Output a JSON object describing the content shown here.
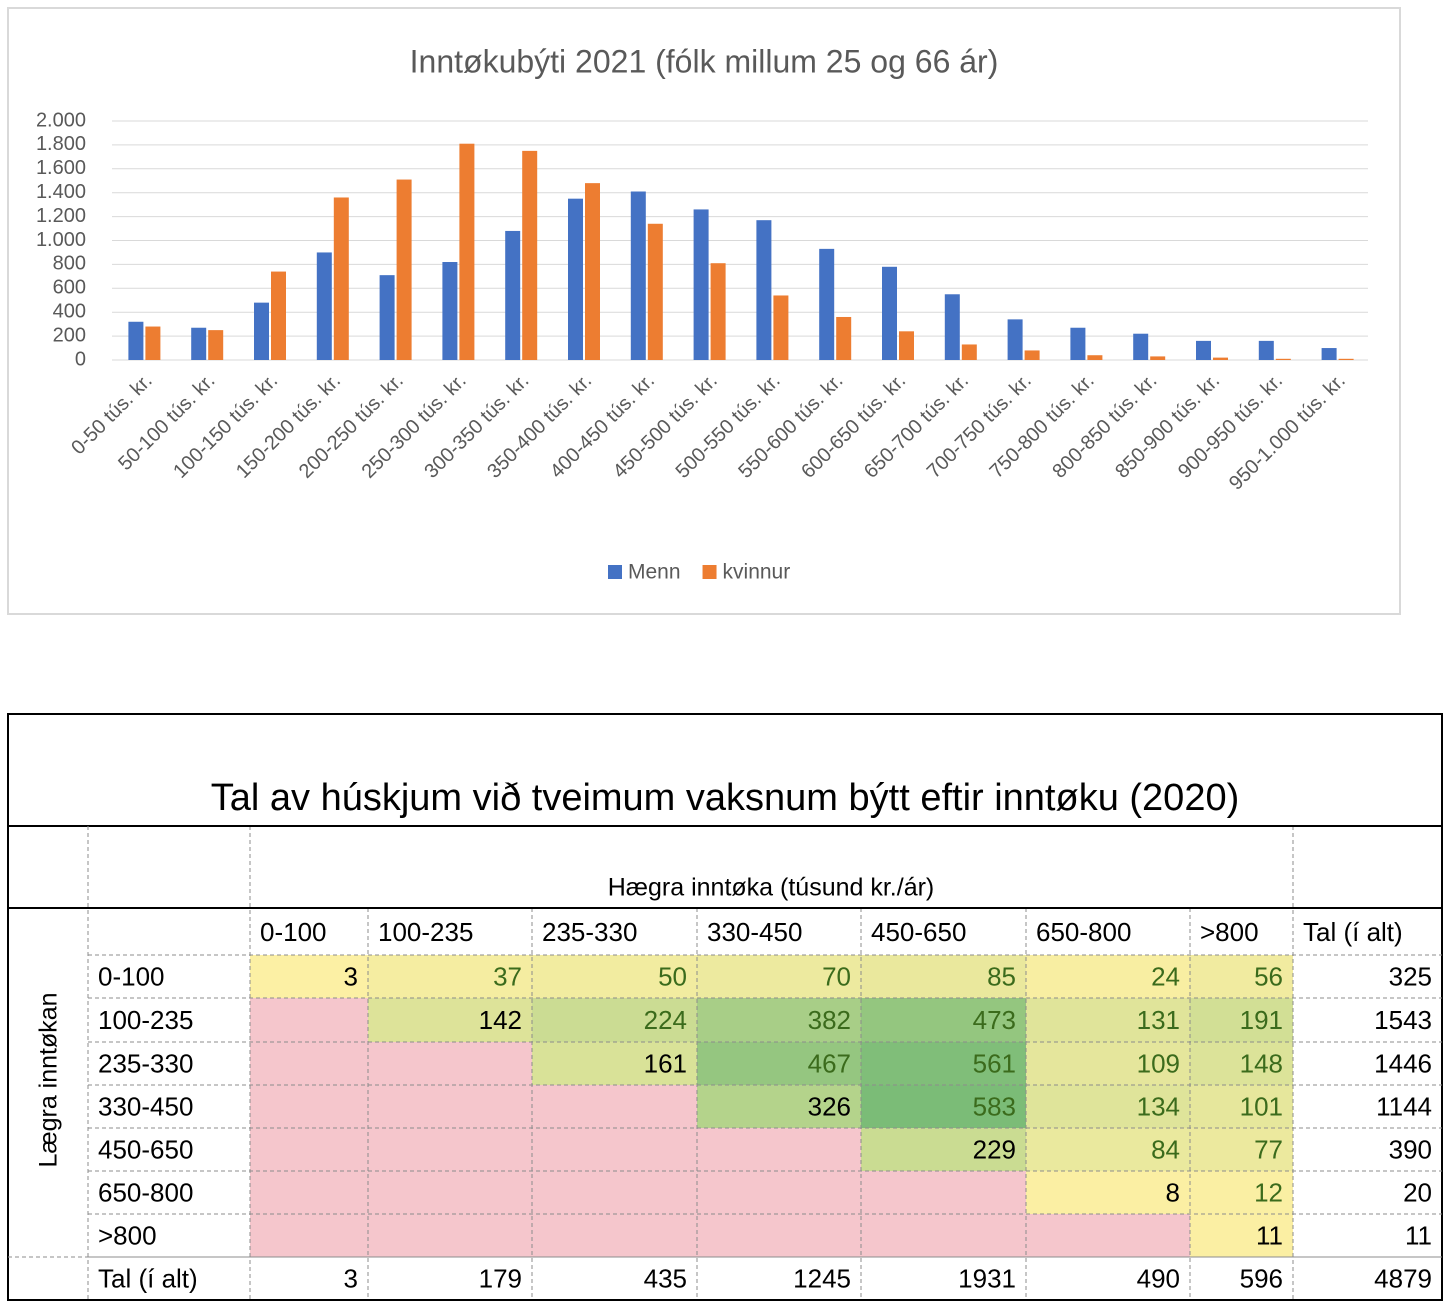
{
  "chart_data": {
    "type": "bar",
    "title": "Inntøkubýti 2021 (fólk millum 25 og 66 ár)",
    "categories": [
      "0-50 tús. kr.",
      "50-100 tús. kr.",
      "100-150 tús. kr.",
      "150-200 tús. kr.",
      "200-250 tús. kr.",
      "250-300 tús. kr.",
      "300-350 tús. kr.",
      "350-400 tús. kr.",
      "400-450 tús. kr.",
      "450-500 tús. kr.",
      "500-550 tús. kr.",
      "550-600 tús. kr.",
      "600-650 tús. kr.",
      "650-700 tús. kr.",
      "700-750 tús. kr.",
      "750-800 tús. kr.",
      "800-850 tús. kr.",
      "850-900 tús. kr.",
      "900-950 tús. kr.",
      "950-1.000 tús. kr."
    ],
    "series": [
      {
        "name": "Menn",
        "color": "#4472c4",
        "values": [
          320,
          270,
          480,
          900,
          710,
          820,
          1080,
          1350,
          1410,
          1260,
          1170,
          930,
          780,
          550,
          340,
          270,
          220,
          160,
          160,
          100
        ]
      },
      {
        "name": "kvinnur",
        "color": "#ed7d31",
        "values": [
          280,
          250,
          740,
          1360,
          1510,
          1810,
          1750,
          1480,
          1140,
          810,
          540,
          360,
          240,
          130,
          80,
          40,
          30,
          20,
          10,
          10
        ]
      }
    ],
    "ylim": [
      0,
      2000
    ],
    "yticks": [
      0,
      200,
      400,
      600,
      800,
      {
        "value": 1000,
        "label": "1.000"
      },
      {
        "value": 1200,
        "label": "1.200"
      },
      {
        "value": 1400,
        "label": "1.400"
      },
      {
        "value": 1600,
        "label": "1.600"
      },
      {
        "value": 1800,
        "label": "1.800"
      },
      {
        "value": 2000,
        "label": "2.000"
      }
    ],
    "grid": true,
    "legend": "bottom"
  },
  "table": {
    "title": "Tal av húskjum við tveimum vaksnum býtt eftir inntøku (2020)",
    "column_header": "Hægra inntøka (túsund kr./ár)",
    "row_header": "Lægra inntøkan",
    "columns": [
      "0-100",
      "100-235",
      "235-330",
      "330-450",
      "450-650",
      "650-800",
      ">800",
      "Tal (í alt)"
    ],
    "rows": [
      {
        "label": "0-100",
        "values": [
          3,
          37,
          50,
          70,
          85,
          24,
          56,
          325
        ]
      },
      {
        "label": "100-235",
        "values": [
          null,
          142,
          224,
          382,
          473,
          131,
          191,
          1543
        ]
      },
      {
        "label": "235-330",
        "values": [
          null,
          null,
          161,
          467,
          561,
          109,
          148,
          1446
        ]
      },
      {
        "label": "330-450",
        "values": [
          null,
          null,
          null,
          326,
          583,
          134,
          101,
          1144
        ]
      },
      {
        "label": "450-650",
        "values": [
          null,
          null,
          null,
          null,
          229,
          84,
          77,
          390
        ]
      },
      {
        "label": "650-800",
        "values": [
          null,
          null,
          null,
          null,
          null,
          8,
          12,
          20
        ]
      },
      {
        "label": ">800",
        "values": [
          null,
          null,
          null,
          null,
          null,
          null,
          11,
          11
        ]
      }
    ],
    "total": {
      "label": "Tal (í alt)",
      "values": [
        3,
        179,
        435,
        1245,
        1931,
        490,
        596,
        4879
      ]
    }
  }
}
